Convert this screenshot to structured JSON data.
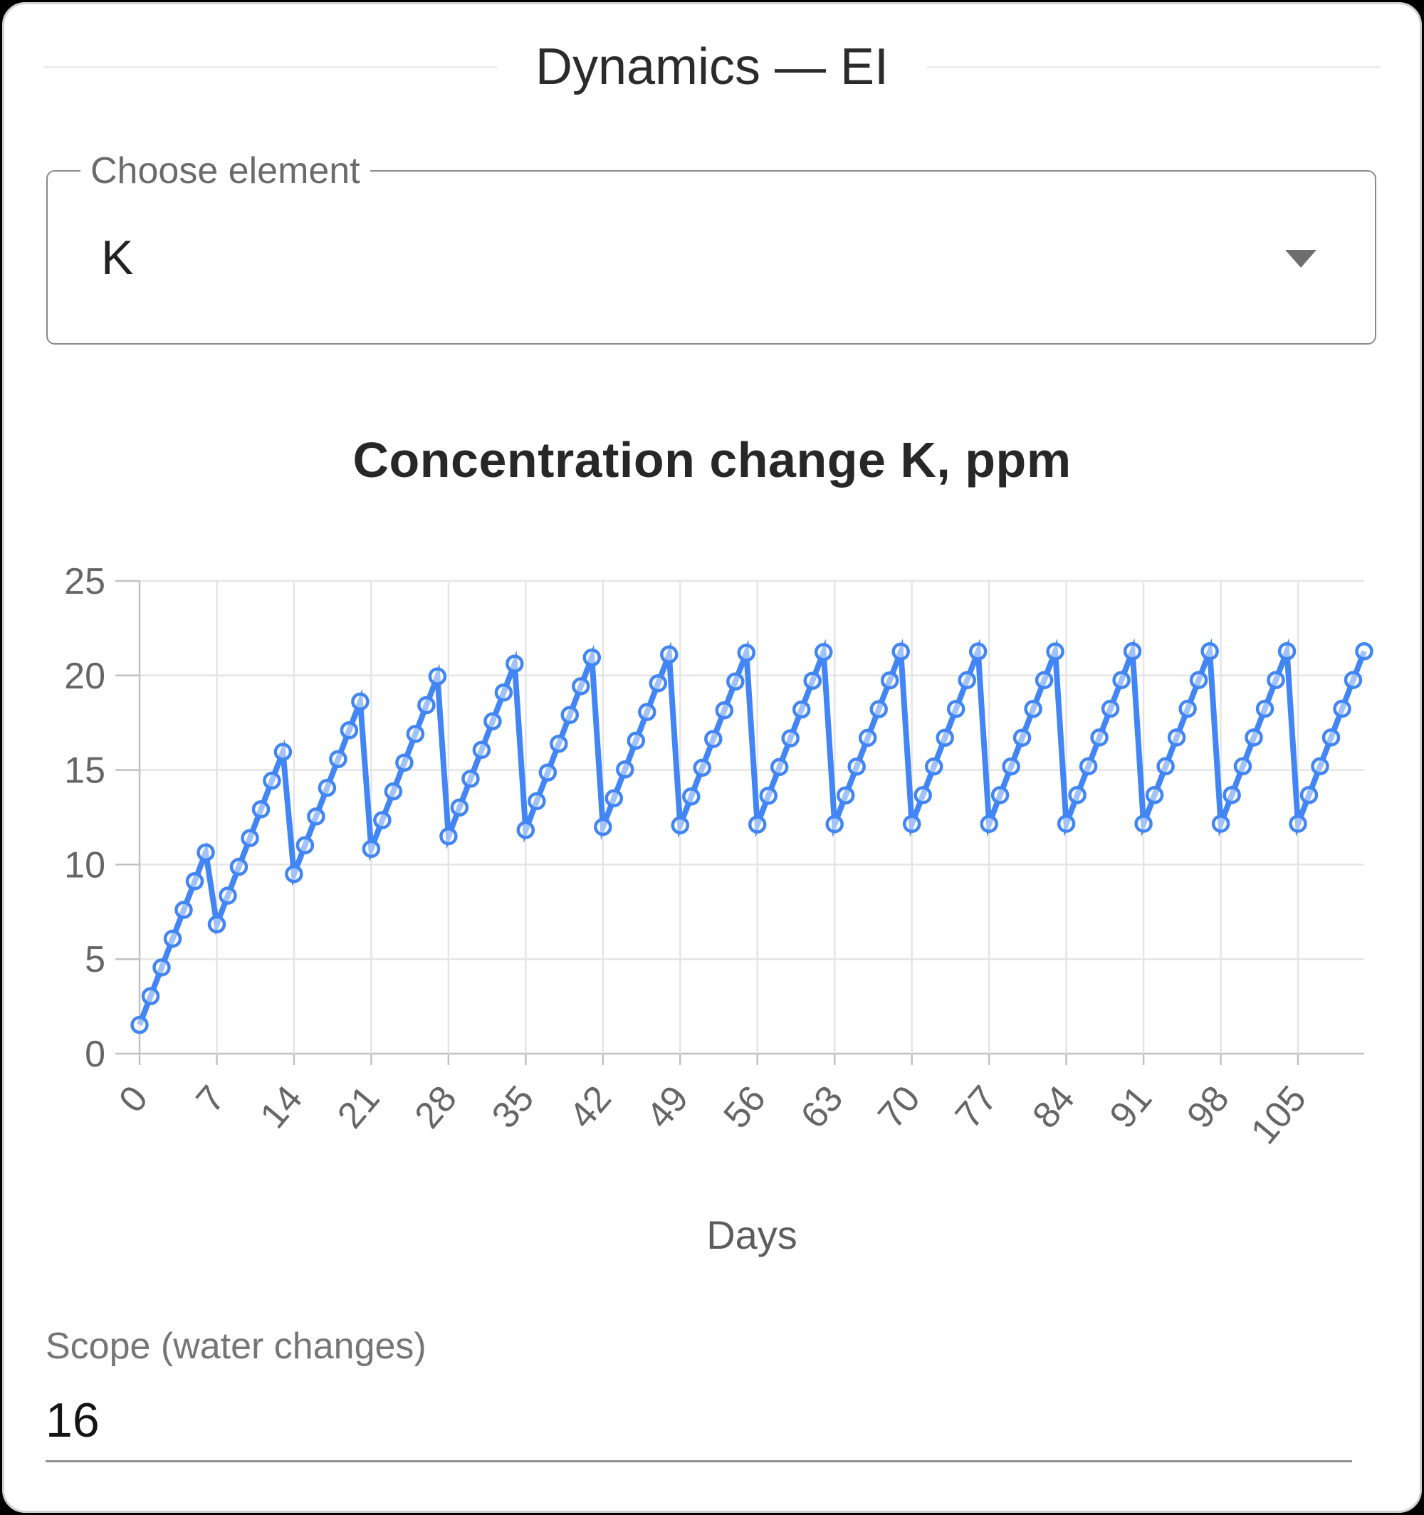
{
  "header": {
    "title": "Dynamics — EI"
  },
  "select": {
    "label": "Choose element",
    "value": "K",
    "icon": "arrow-drop-down"
  },
  "scope_field": {
    "label": "Scope (water changes)",
    "value": "16"
  },
  "accent_color": "#4285f4",
  "chart_data": {
    "type": "line",
    "title": "Concentration change K, ppm",
    "xlabel": "Days",
    "ylabel": "",
    "legend": "none",
    "grid": true,
    "point_style": "circle",
    "line_color": "#4285f4",
    "grid_color": "#e5e5e5",
    "axis_border_color": "#c1c1c1",
    "tick_color": "#666666",
    "axis_title_color": "#5d5d5d",
    "xlim": [
      0,
      111
    ],
    "ylim": [
      0,
      25
    ],
    "x_ticks": [
      0,
      7,
      14,
      21,
      28,
      35,
      42,
      49,
      56,
      63,
      70,
      77,
      84,
      91,
      98,
      105
    ],
    "y_ticks": [
      0,
      5,
      10,
      15,
      20,
      25
    ],
    "x_tick_rotation": -50,
    "x": [
      0,
      1,
      2,
      3,
      4,
      5,
      6,
      7,
      8,
      9,
      10,
      11,
      12,
      13,
      14,
      15,
      16,
      17,
      18,
      19,
      20,
      21,
      22,
      23,
      24,
      25,
      26,
      27,
      28,
      29,
      30,
      31,
      32,
      33,
      34,
      35,
      36,
      37,
      38,
      39,
      40,
      41,
      42,
      43,
      44,
      45,
      46,
      47,
      48,
      49,
      50,
      51,
      52,
      53,
      54,
      55,
      56,
      57,
      58,
      59,
      60,
      61,
      62,
      63,
      64,
      65,
      66,
      67,
      68,
      69,
      70,
      71,
      72,
      73,
      74,
      75,
      76,
      77,
      78,
      79,
      80,
      81,
      82,
      83,
      84,
      85,
      86,
      87,
      88,
      89,
      90,
      91,
      92,
      93,
      94,
      95,
      96,
      97,
      98,
      99,
      100,
      101,
      102,
      103,
      104,
      105,
      106,
      107,
      108,
      109,
      110,
      111
    ],
    "values": [
      1.52,
      3.04,
      4.56,
      6.08,
      7.6,
      9.12,
      10.64,
      6.84,
      8.36,
      9.88,
      11.4,
      12.92,
      14.44,
      15.96,
      9.5,
      11.02,
      12.54,
      14.06,
      15.58,
      17.1,
      18.62,
      10.83,
      12.35,
      13.87,
      15.39,
      16.91,
      18.43,
      19.95,
      11.5,
      13.02,
      14.54,
      16.06,
      17.58,
      19.1,
      20.62,
      11.83,
      13.35,
      14.87,
      16.39,
      17.91,
      19.43,
      20.95,
      11.99,
      13.51,
      15.03,
      16.55,
      18.07,
      19.59,
      21.11,
      12.08,
      13.6,
      15.12,
      16.64,
      18.16,
      19.68,
      21.2,
      12.12,
      13.64,
      15.16,
      16.68,
      18.2,
      19.72,
      21.24,
      12.14,
      13.66,
      15.18,
      16.7,
      18.22,
      19.74,
      21.26,
      12.15,
      13.67,
      15.19,
      16.71,
      18.23,
      19.75,
      21.27,
      12.15,
      13.67,
      15.19,
      16.71,
      18.23,
      19.75,
      21.27,
      12.16,
      13.68,
      15.2,
      16.72,
      18.24,
      19.76,
      21.28,
      12.16,
      13.68,
      15.2,
      16.72,
      18.24,
      19.76,
      21.28,
      12.16,
      13.68,
      15.2,
      16.72,
      18.24,
      19.76,
      21.28,
      12.16,
      13.68,
      15.2,
      16.72,
      18.24,
      19.76,
      21.28
    ]
  }
}
